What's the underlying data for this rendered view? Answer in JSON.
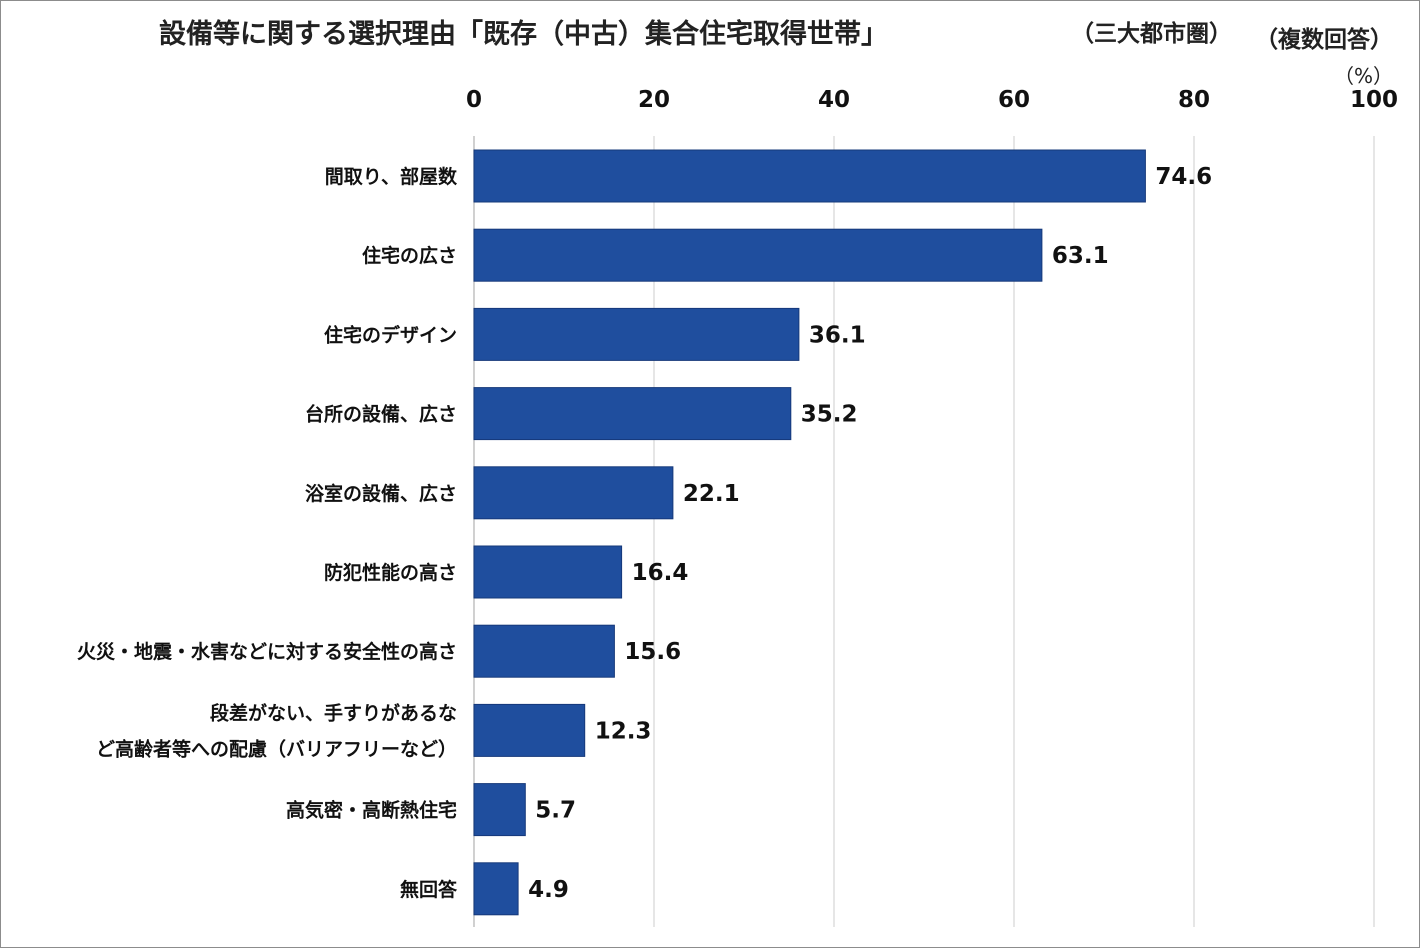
{
  "chart_data": {
    "type": "bar",
    "orientation": "horizontal",
    "title": "設備等に関する選択理由「既存（中古）集合住宅取得世帯」",
    "subtitle": "（三大都市圏）",
    "note": "（複数回答）",
    "unit": "（%）",
    "categories": [
      [
        "間取り、部屋数"
      ],
      [
        "住宅の広さ"
      ],
      [
        "住宅のデザイン"
      ],
      [
        "台所の設備、広さ"
      ],
      [
        "浴室の設備、広さ"
      ],
      [
        "防犯性能の高さ"
      ],
      [
        "火災・地震・水害などに対する安全性の高さ"
      ],
      [
        "段差がない、手すりがあるな",
        "ど高齢者等への配慮（バリアフリーなど）"
      ],
      [
        "高気密・高断熱住宅"
      ],
      [
        "無回答"
      ]
    ],
    "values": [
      74.6,
      63.1,
      36.1,
      35.2,
      22.1,
      16.4,
      15.6,
      12.3,
      5.7,
      4.9
    ],
    "xlim": [
      0,
      100
    ],
    "xticks": [
      0,
      20,
      40,
      60,
      80,
      100
    ],
    "xaxis_position": "top",
    "grid": true,
    "bar_color": "#1f4e9e"
  }
}
